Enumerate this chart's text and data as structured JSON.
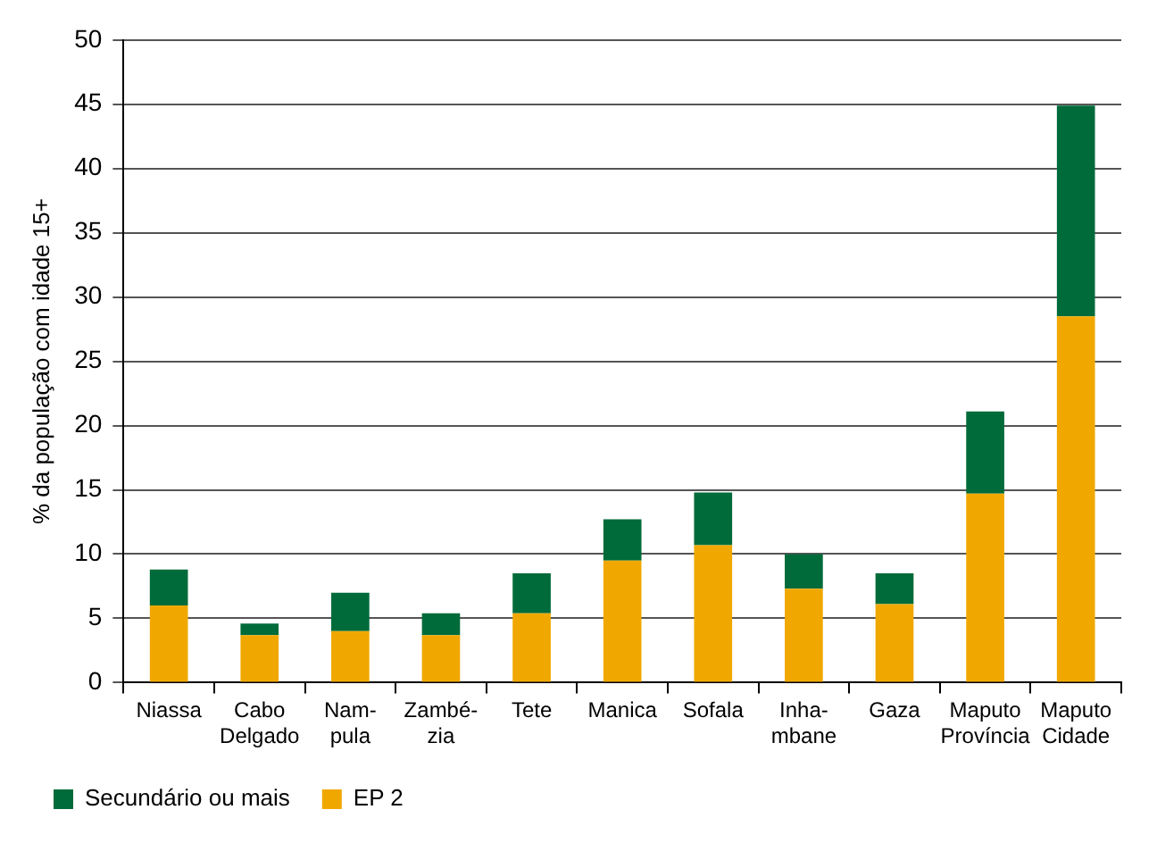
{
  "chart_data": {
    "type": "bar",
    "stacked": true,
    "ylabel": "% da população com idade 15+",
    "categories": [
      "Niassa",
      "Cabo\nDelgado",
      "Nam-\npula",
      "Zambé-\nzia",
      "Tete",
      "Manica",
      "Sofala",
      "Inha-\nmbane",
      "Gaza",
      "Maputo\nProvíncia",
      "Maputo\nCidade"
    ],
    "series": [
      {
        "name": "EP 2",
        "color": "#f0a800",
        "values": [
          6.0,
          3.7,
          4.0,
          3.7,
          5.4,
          9.5,
          10.7,
          7.3,
          6.1,
          14.7,
          28.5
        ]
      },
      {
        "name": "Secundário ou mais",
        "color": "#006b3a",
        "values": [
          2.8,
          0.9,
          3.0,
          1.7,
          3.1,
          3.2,
          4.1,
          2.7,
          2.4,
          6.4,
          16.4
        ]
      }
    ],
    "ylim": [
      0,
      50
    ],
    "yticks": [
      0,
      5,
      10,
      15,
      20,
      25,
      30,
      35,
      40,
      45,
      50
    ],
    "grid": "y",
    "legend": "bottom left"
  }
}
